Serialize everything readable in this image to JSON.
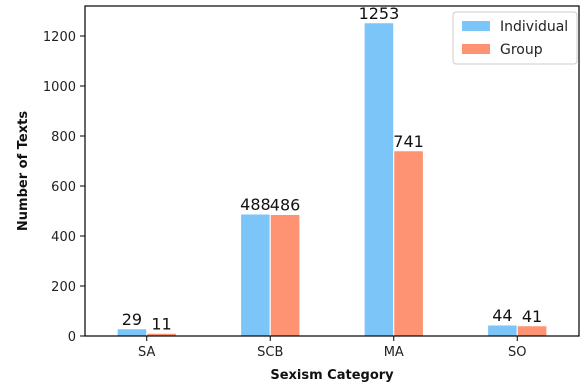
{
  "chart_data": {
    "type": "bar",
    "categories": [
      "SA",
      "SCB",
      "MA",
      "SO"
    ],
    "series": [
      {
        "name": "Individual",
        "values": [
          29,
          488,
          1253,
          44
        ],
        "color": "#7cc5f8"
      },
      {
        "name": "Group",
        "values": [
          11,
          486,
          741,
          41
        ],
        "color": "#fd9372"
      }
    ],
    "xlabel": "Sexism Category",
    "ylabel": "Number of Texts",
    "ylim": [
      0,
      1320
    ],
    "yticks": [
      0,
      200,
      400,
      600,
      800,
      1000,
      1200
    ],
    "grid": false,
    "legend_position": "top-right"
  }
}
